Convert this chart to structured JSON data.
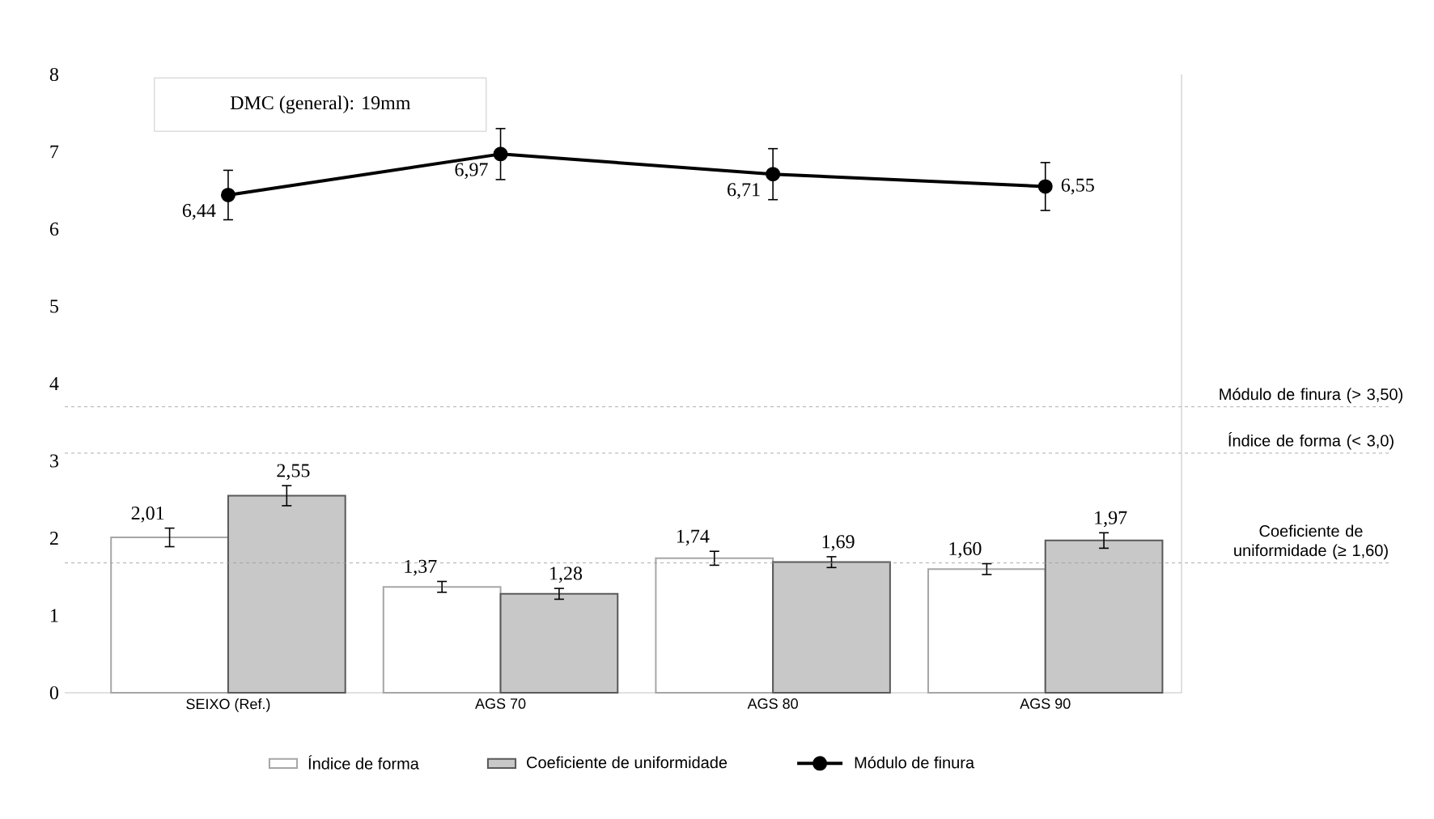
{
  "chart_data": {
    "type": "bar",
    "categories": [
      "SEIXO (Ref.)",
      "AGS 70",
      "AGS 80",
      "AGS 90"
    ],
    "series": [
      {
        "name": "Índice de forma",
        "color": "#ffffff",
        "values": [
          2.01,
          1.37,
          1.74,
          1.6
        ],
        "errors": [
          0.12,
          0.07,
          0.09,
          0.07
        ],
        "value_labels": [
          "2,01",
          "1,37",
          "1,74",
          "1,60"
        ]
      },
      {
        "name": "Coeficiente de uniformidade",
        "color": "#c8c8c8",
        "values": [
          2.55,
          1.28,
          1.69,
          1.97
        ],
        "errors": [
          0.13,
          0.07,
          0.07,
          0.1
        ],
        "value_labels": [
          "2,55",
          "1,28",
          "1,69",
          "1,97"
        ]
      },
      {
        "name": "Módulo de finura",
        "type": "line",
        "color": "#000000",
        "values": [
          6.44,
          6.97,
          6.71,
          6.55
        ],
        "errors": [
          0.32,
          0.33,
          0.33,
          0.31
        ],
        "value_labels": [
          "6,44",
          "6,97",
          "6,71",
          "6,55"
        ]
      }
    ],
    "ylim": [
      0,
      8
    ],
    "yticks": [
      0,
      1,
      2,
      3,
      4,
      5,
      6,
      7,
      8
    ],
    "ref_lines": [
      {
        "axis": "y",
        "value": 3.7,
        "label": "Módulo de finura (> 3,50)",
        "line_style": "dashed",
        "color": "#999999"
      },
      {
        "axis": "y",
        "value": 3.1,
        "label": "Índice de forma (< 3,0)",
        "line_style": "dashed",
        "color": "#999999"
      },
      {
        "axis": "y",
        "value": 1.68,
        "label": "Coeficiente de uniformidade (≥ 1,60)",
        "line_style": "dashed",
        "color": "#999999"
      }
    ],
    "annotations": [
      "DMC (general): 19mm"
    ],
    "legend": "bottom",
    "marker": "circle",
    "grid": false
  }
}
